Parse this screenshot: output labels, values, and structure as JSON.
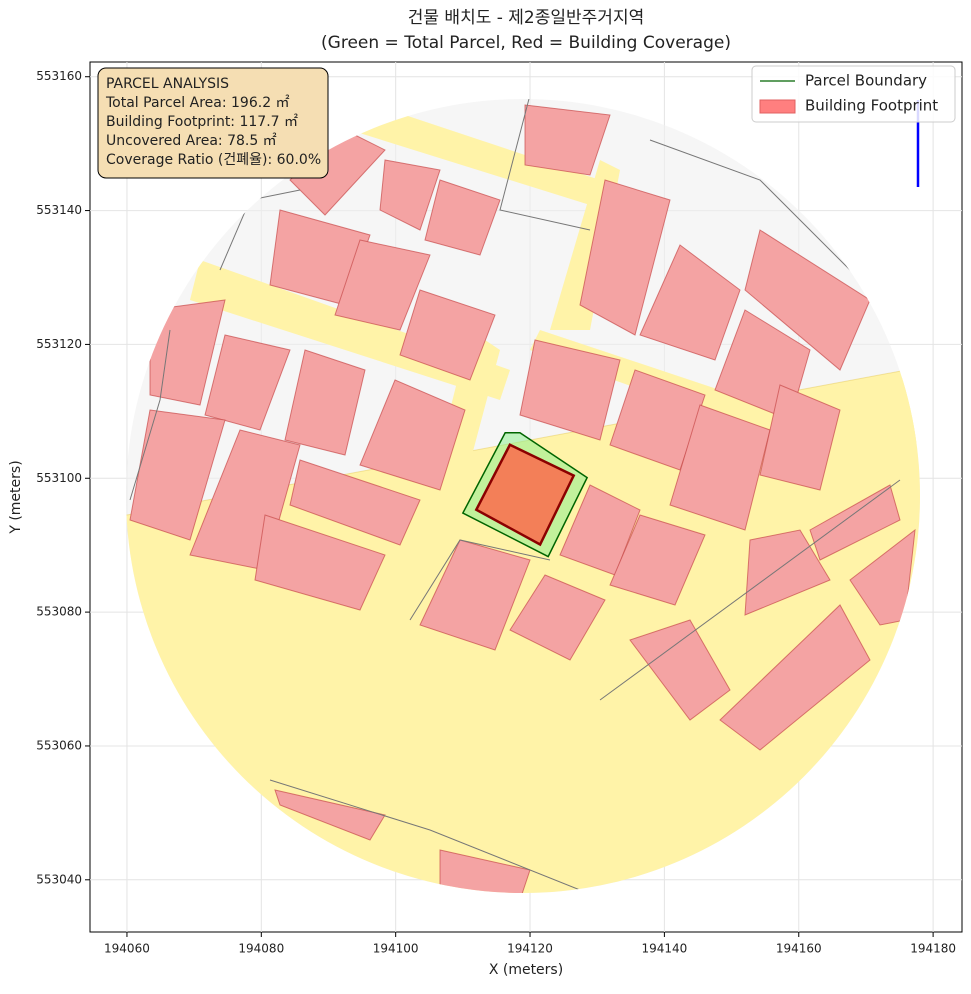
{
  "chart_data": {
    "type": "polygon",
    "title": "건물 배치도 - 제2종일반주거지역",
    "subtitle": "(Green = Total Parcel, Red = Building Coverage)",
    "x_label": "X (meters)",
    "y_label": "Y (meters)",
    "xlim": [
      194054.5,
      194184.3
    ],
    "ylim": [
      553032.2,
      553162.2
    ],
    "xticks": [
      194060,
      194080,
      194100,
      194120,
      194140,
      194160,
      194180
    ],
    "yticks": [
      553040,
      553060,
      553080,
      553100,
      553120,
      553140,
      553160
    ],
    "grid": true,
    "legend": "upper right",
    "series": [
      {
        "name": "Parcel Boundary",
        "color": "#006400",
        "fill": "#90ee90",
        "x": [
          194116.3,
          194118.5,
          194128.5,
          194122.7,
          194110.0
        ],
        "y": [
          553106.8,
          553106.8,
          553100.1,
          553088.3,
          553094.8
        ]
      },
      {
        "name": "Building Footprint",
        "color": "#8b0000",
        "fill": "#ff6347",
        "x": [
          194117.0,
          194126.5,
          194121.5,
          194112.0
        ],
        "y": [
          553105.0,
          553100.4,
          553090.1,
          553095.3
        ]
      }
    ],
    "annotation": [
      "PARCEL ANALYSIS",
      "Total Parcel Area: 196.2 ㎡",
      "Building Footprint: 117.7 ㎡",
      "Uncovered Area: 78.5 ㎡",
      "Coverage Ratio (건폐율): 60.0%"
    ]
  }
}
